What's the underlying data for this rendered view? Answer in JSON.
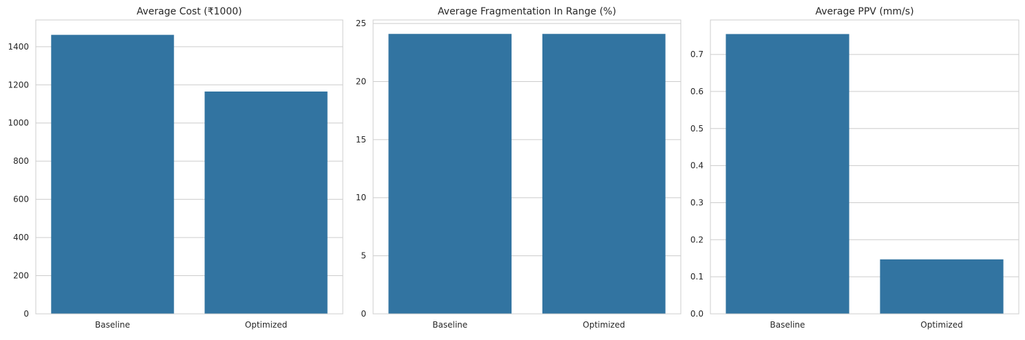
{
  "chart_data": [
    {
      "type": "bar",
      "title": "Average Cost (₹1000)",
      "categories": [
        "Baseline",
        "Optimized"
      ],
      "values": [
        1462,
        1165
      ],
      "ylim": [
        0,
        1540
      ],
      "yticks": [
        0,
        200,
        400,
        600,
        800,
        1000,
        1200,
        1400
      ],
      "ytick_labels": [
        "0",
        "200",
        "400",
        "600",
        "800",
        "1000",
        "1200",
        "1400"
      ],
      "color": "#3274a1",
      "grid": "y"
    },
    {
      "type": "bar",
      "title": "Average Fragmentation In Range (%)",
      "categories": [
        "Baseline",
        "Optimized"
      ],
      "values": [
        24.1,
        24.1
      ],
      "ylim": [
        0,
        25.3
      ],
      "yticks": [
        0,
        5,
        10,
        15,
        20,
        25
      ],
      "ytick_labels": [
        "0",
        "5",
        "10",
        "15",
        "20",
        "25"
      ],
      "color": "#3274a1",
      "grid": "y"
    },
    {
      "type": "bar",
      "title": "Average PPV (mm/s)",
      "categories": [
        "Baseline",
        "Optimized"
      ],
      "values": [
        0.755,
        0.147
      ],
      "ylim": [
        0,
        0.793
      ],
      "yticks": [
        0.0,
        0.1,
        0.2,
        0.3,
        0.4,
        0.5,
        0.6,
        0.7
      ],
      "ytick_labels": [
        "0.0",
        "0.1",
        "0.2",
        "0.3",
        "0.4",
        "0.5",
        "0.6",
        "0.7"
      ],
      "color": "#3274a1",
      "grid": "y"
    }
  ]
}
